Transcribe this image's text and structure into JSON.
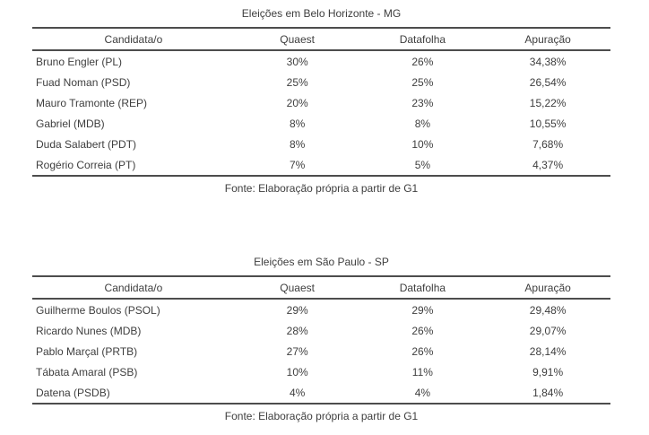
{
  "colors": {
    "background": "#ffffff",
    "text": "#3e3e3e",
    "rule": "#4d4d4d"
  },
  "tables": [
    {
      "title": "Eleições em Belo Horizonte - MG",
      "columns": [
        "Candidata/o",
        "Quaest",
        "Datafolha",
        "Apuração"
      ],
      "rows": [
        {
          "cells": [
            "Bruno Engler (PL)",
            "30%",
            "26%",
            "34,38%"
          ]
        },
        {
          "cells": [
            "Fuad Noman (PSD)",
            "25%",
            "25%",
            "26,54%"
          ]
        },
        {
          "cells": [
            "Mauro Tramonte (REP)",
            "20%",
            "23%",
            "15,22%"
          ]
        },
        {
          "cells": [
            "Gabriel (MDB)",
            "8%",
            "8%",
            "10,55%"
          ]
        },
        {
          "cells": [
            "Duda Salabert (PDT)",
            "8%",
            "10%",
            "7,68%"
          ]
        },
        {
          "cells": [
            "Rogério Correia (PT)",
            "7%",
            "5%",
            "4,37%"
          ]
        }
      ],
      "source": "Fonte: Elaboração própria a partir de G1"
    },
    {
      "title": "Eleições em São Paulo - SP",
      "columns": [
        "Candidata/o",
        "Quaest",
        "Datafolha",
        "Apuração"
      ],
      "rows": [
        {
          "cells": [
            "Guilherme Boulos (PSOL)",
            "29%",
            "29%",
            "29,48%"
          ]
        },
        {
          "cells": [
            "Ricardo Nunes (MDB)",
            "28%",
            "26%",
            "29,07%"
          ]
        },
        {
          "cells": [
            "Pablo Marçal (PRTB)",
            "27%",
            "26%",
            "28,14%"
          ]
        },
        {
          "cells": [
            "Tábata Amaral (PSB)",
            "10%",
            "11%",
            "9,91%"
          ]
        },
        {
          "cells": [
            "Datena (PSDB)",
            "4%",
            "4%",
            "1,84%"
          ]
        }
      ],
      "source": "Fonte: Elaboração própria a partir de G1"
    }
  ]
}
